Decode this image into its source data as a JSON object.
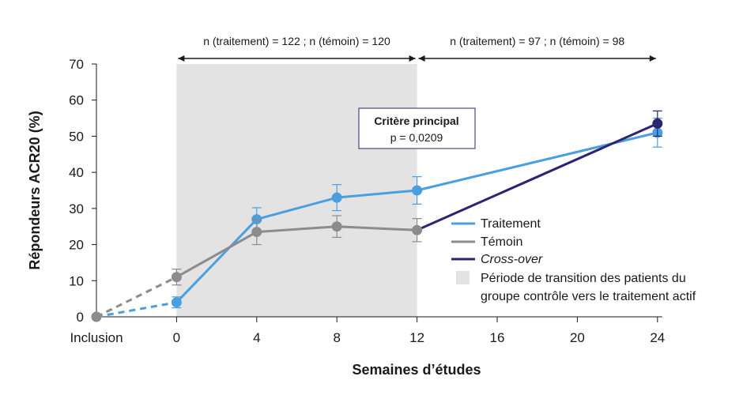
{
  "chart_data": {
    "type": "line",
    "xlabel": "Semaines d’études",
    "ylabel": "Répondeurs ACR20 (%)",
    "ylim": [
      0,
      70
    ],
    "yticks": [
      0,
      10,
      20,
      30,
      40,
      50,
      60,
      70
    ],
    "x_ticks": [
      {
        "label": "Inclusion",
        "x": -4
      },
      {
        "label": "0",
        "x": 0
      },
      {
        "label": "4",
        "x": 4
      },
      {
        "label": "8",
        "x": 8
      },
      {
        "label": "12",
        "x": 12
      },
      {
        "label": "16",
        "x": 16
      },
      {
        "label": "20",
        "x": 20
      },
      {
        "label": "24",
        "x": 24
      }
    ],
    "shaded_region": {
      "x": [
        0,
        12
      ],
      "label": "Période de transition des patients du groupe contrôle vers le traitement actif",
      "label_lines": [
        "Période de transition des patients du",
        "groupe contrôle vers le traitement actif"
      ],
      "color": "#e3e3e3"
    },
    "annotations": {
      "period1": {
        "text": "n (traitement) = 122 ; n (témoin) = 120",
        "x": [
          0,
          12
        ]
      },
      "period2": {
        "text": "n (traitement) = 97 ; n (témoin) = 98",
        "x": [
          12,
          24
        ]
      },
      "box": {
        "title": "Critère principal",
        "subtitle": "p = 0,0209"
      }
    },
    "series": [
      {
        "name": "Traitement",
        "color": "#4a9fdf",
        "dashed_to": 0,
        "points": [
          {
            "x": -4,
            "y": 0
          },
          {
            "x": 0,
            "y": 4,
            "err": 1.5
          },
          {
            "x": 4,
            "y": 27,
            "err": 3.2
          },
          {
            "x": 8,
            "y": 33,
            "err": 3.6
          },
          {
            "x": 12,
            "y": 35,
            "err": 3.8
          },
          {
            "x": 24,
            "y": 51,
            "err": 4.0
          }
        ]
      },
      {
        "name": "Témoin",
        "color": "#8c8c8c",
        "dashed_to": 0,
        "points": [
          {
            "x": -4,
            "y": 0
          },
          {
            "x": 0,
            "y": 11,
            "err": 2.2
          },
          {
            "x": 4,
            "y": 23.5,
            "err": 3.5
          },
          {
            "x": 8,
            "y": 25,
            "err": 3.0
          },
          {
            "x": 12,
            "y": 24,
            "err": 3.2
          }
        ]
      },
      {
        "name": "Cross-over",
        "color": "#2b2473",
        "dashed_to": null,
        "points": [
          {
            "x": 12,
            "y": 24
          },
          {
            "x": 24,
            "y": 53.5,
            "err": 3.5
          }
        ]
      }
    ]
  }
}
